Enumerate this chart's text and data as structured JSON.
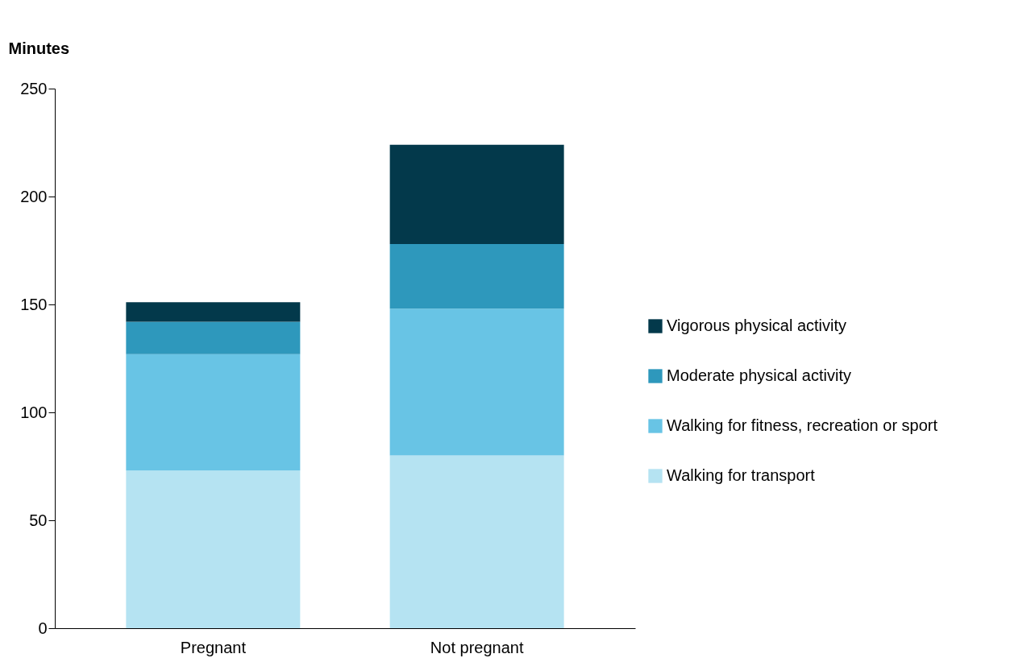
{
  "chart_data": {
    "type": "bar",
    "stacked": true,
    "ylabel": "Minutes",
    "categories": [
      "Pregnant",
      "Not pregnant"
    ],
    "series": [
      {
        "name": "Walking for transport",
        "color": "#b5e3f2",
        "values": [
          73,
          80
        ]
      },
      {
        "name": "Walking for fitness, recreation or sport",
        "color": "#68c4e5",
        "values": [
          54,
          68
        ]
      },
      {
        "name": "Moderate physical activity",
        "color": "#2e98bc",
        "values": [
          15,
          30
        ]
      },
      {
        "name": "Vigorous physical activity",
        "color": "#03394b",
        "values": [
          9,
          46
        ]
      }
    ],
    "ylim": [
      0,
      250
    ],
    "yticks": [
      0,
      50,
      100,
      150,
      200,
      250
    ],
    "grid": false,
    "legend": "right"
  }
}
